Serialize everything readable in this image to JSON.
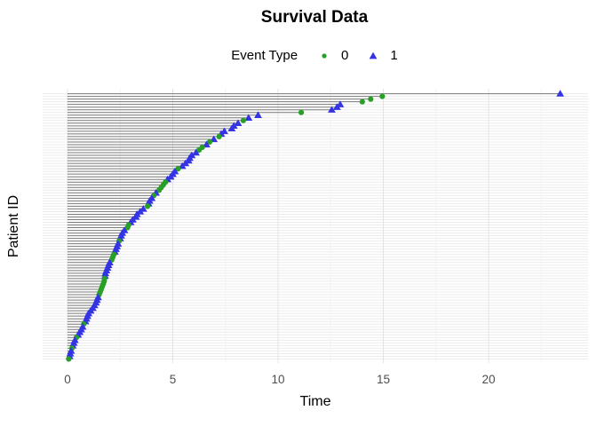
{
  "title": "Survival Data",
  "legend": {
    "title": "Event Type",
    "items": [
      {
        "label": "0",
        "marker": "circle",
        "color": "#28a028"
      },
      {
        "label": "1",
        "marker": "triangle",
        "color": "#3434e4"
      }
    ]
  },
  "axes": {
    "x": {
      "title": "Time",
      "ticks": [
        0,
        5,
        10,
        15,
        20
      ],
      "minor_ticks": [
        2.5,
        7.5,
        12.5,
        17.5,
        22.5
      ]
    },
    "y": {
      "title": "Patient ID",
      "tick_labels_visible": false,
      "n_levels": 100
    }
  },
  "colors": {
    "circle": "#28a028",
    "triangle": "#3434e4",
    "segment": "#7a7a7a",
    "grid_row": "#ececec",
    "grid_major": "#e4e4e4",
    "grid_minor": "#f3f3f3",
    "tick_label": "#4d4d4d",
    "background": "#ffffff"
  },
  "chart_data": {
    "type": "scatter",
    "subtype": "survival-segment-plot",
    "title": "Survival Data",
    "xlabel": "Time",
    "ylabel": "Patient ID",
    "xlim": [
      0,
      23.4
    ],
    "grid": true,
    "legend_position": "top",
    "legend_title": "Event Type",
    "legend_entries": [
      "0",
      "1"
    ],
    "n_patients": 100,
    "row_order": "top_to_bottom_descending_time",
    "event_key": {
      "0": "green circle",
      "1": "blue triangle"
    },
    "patients": [
      [
        23.4,
        1
      ],
      [
        14.95,
        0
      ],
      [
        14.4,
        0
      ],
      [
        14.0,
        0
      ],
      [
        12.95,
        1
      ],
      [
        12.8,
        1
      ],
      [
        12.55,
        1
      ],
      [
        11.1,
        0
      ],
      [
        9.05,
        1
      ],
      [
        8.6,
        1
      ],
      [
        8.35,
        0
      ],
      [
        8.1,
        1
      ],
      [
        7.9,
        1
      ],
      [
        7.8,
        1
      ],
      [
        7.45,
        1
      ],
      [
        7.3,
        1
      ],
      [
        7.2,
        0
      ],
      [
        6.95,
        1
      ],
      [
        6.75,
        0
      ],
      [
        6.6,
        1
      ],
      [
        6.4,
        0
      ],
      [
        6.25,
        0
      ],
      [
        6.1,
        1
      ],
      [
        5.9,
        1
      ],
      [
        5.8,
        1
      ],
      [
        5.75,
        1
      ],
      [
        5.6,
        1
      ],
      [
        5.45,
        1
      ],
      [
        5.25,
        0
      ],
      [
        5.1,
        1
      ],
      [
        5.0,
        1
      ],
      [
        4.9,
        1
      ],
      [
        4.75,
        1
      ],
      [
        4.65,
        0
      ],
      [
        4.55,
        0
      ],
      [
        4.45,
        0
      ],
      [
        4.35,
        0
      ],
      [
        4.2,
        1
      ],
      [
        4.1,
        0
      ],
      [
        4.0,
        1
      ],
      [
        3.9,
        1
      ],
      [
        3.85,
        1
      ],
      [
        3.8,
        0
      ],
      [
        3.6,
        1
      ],
      [
        3.45,
        1
      ],
      [
        3.3,
        1
      ],
      [
        3.25,
        1
      ],
      [
        3.1,
        1
      ],
      [
        3.0,
        1
      ],
      [
        2.9,
        0
      ],
      [
        2.85,
        0
      ],
      [
        2.7,
        1
      ],
      [
        2.6,
        1
      ],
      [
        2.55,
        1
      ],
      [
        2.5,
        1
      ],
      [
        2.45,
        0
      ],
      [
        2.4,
        1
      ],
      [
        2.35,
        1
      ],
      [
        2.3,
        1
      ],
      [
        2.25,
        1
      ],
      [
        2.2,
        0
      ],
      [
        2.15,
        0
      ],
      [
        2.1,
        0
      ],
      [
        2.0,
        1
      ],
      [
        1.95,
        1
      ],
      [
        1.9,
        1
      ],
      [
        1.85,
        1
      ],
      [
        1.8,
        1
      ],
      [
        1.78,
        1
      ],
      [
        1.76,
        0
      ],
      [
        1.74,
        0
      ],
      [
        1.7,
        0
      ],
      [
        1.65,
        0
      ],
      [
        1.6,
        0
      ],
      [
        1.55,
        0
      ],
      [
        1.5,
        0
      ],
      [
        1.45,
        1
      ],
      [
        1.4,
        1
      ],
      [
        1.35,
        1
      ],
      [
        1.28,
        1
      ],
      [
        1.2,
        1
      ],
      [
        1.1,
        1
      ],
      [
        1.0,
        1
      ],
      [
        0.95,
        1
      ],
      [
        0.9,
        1
      ],
      [
        0.85,
        1
      ],
      [
        0.77,
        0
      ],
      [
        0.72,
        1
      ],
      [
        0.65,
        1
      ],
      [
        0.58,
        1
      ],
      [
        0.5,
        1
      ],
      [
        0.42,
        0
      ],
      [
        0.35,
        1
      ],
      [
        0.3,
        1
      ],
      [
        0.25,
        1
      ],
      [
        0.21,
        0
      ],
      [
        0.17,
        1
      ],
      [
        0.13,
        1
      ],
      [
        0.1,
        1
      ],
      [
        0.06,
        0
      ]
    ]
  }
}
